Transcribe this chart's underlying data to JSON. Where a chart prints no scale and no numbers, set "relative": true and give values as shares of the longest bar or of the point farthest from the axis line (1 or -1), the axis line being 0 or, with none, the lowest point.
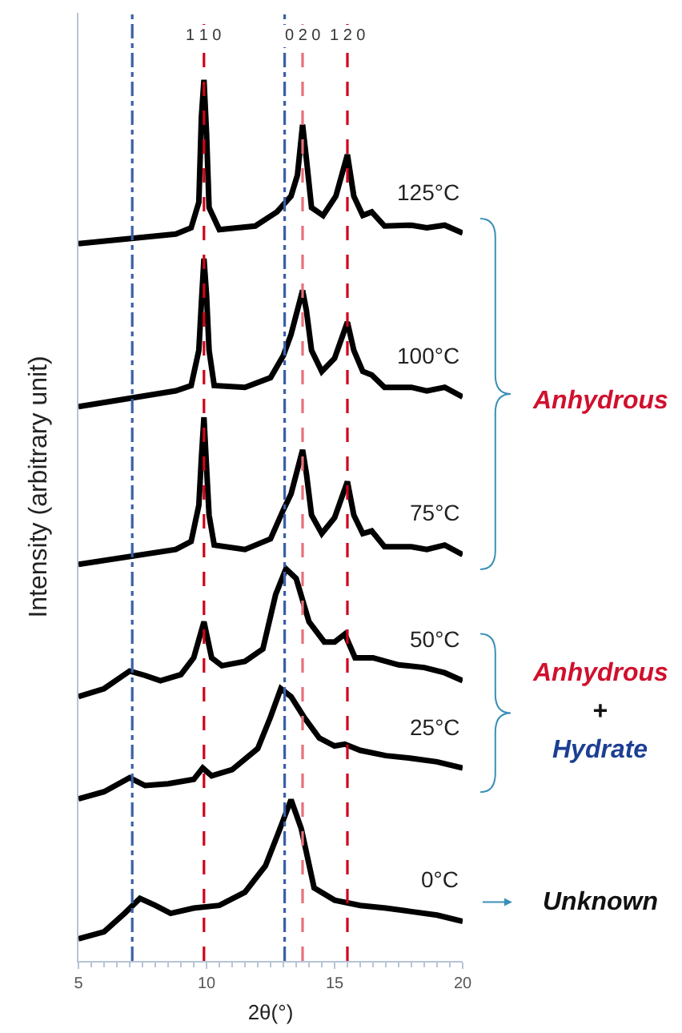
{
  "chart_data": {
    "type": "line",
    "relative": true,
    "xlabel": "2θ(°)",
    "ylabel": "Intensity (arbitrary unit)",
    "xlim": [
      5,
      20
    ],
    "xticks": [
      5,
      10,
      15,
      20
    ],
    "tick_labels": "x",
    "series": [
      {
        "name": "125°C",
        "color": "#000000",
        "x": [
          5,
          8.8,
          9.4,
          9.7,
          9.8,
          9.9,
          10.0,
          10.1,
          10.5,
          11.9,
          12.75,
          13.3,
          13.55,
          13.75,
          13.9,
          14.1,
          14.55,
          15.05,
          15.5,
          15.75,
          16.1,
          16.45,
          16.95,
          18.0,
          18.6,
          19.3,
          20
        ],
        "values": [
          0.814,
          0.825,
          0.832,
          0.861,
          0.958,
          1.0,
          0.94,
          0.855,
          0.83,
          0.834,
          0.85,
          0.868,
          0.892,
          0.949,
          0.91,
          0.855,
          0.846,
          0.868,
          0.915,
          0.868,
          0.846,
          0.85,
          0.834,
          0.835,
          0.832,
          0.835,
          0.826
        ]
      },
      {
        "name": "100°C",
        "color": "#000000",
        "x": [
          5,
          8.8,
          9.4,
          9.7,
          9.8,
          9.9,
          10.0,
          10.1,
          10.3,
          11.5,
          12.5,
          13.0,
          13.3,
          13.75,
          13.9,
          14.1,
          14.5,
          15.0,
          15.5,
          15.75,
          16.1,
          16.45,
          16.95,
          18.0,
          18.6,
          19.3,
          20
        ],
        "values": [
          0.629,
          0.647,
          0.653,
          0.693,
          0.747,
          0.797,
          0.756,
          0.693,
          0.653,
          0.651,
          0.662,
          0.687,
          0.711,
          0.761,
          0.738,
          0.693,
          0.669,
          0.684,
          0.725,
          0.693,
          0.669,
          0.665,
          0.651,
          0.651,
          0.647,
          0.651,
          0.64
        ]
      },
      {
        "name": "75°C",
        "color": "#000000",
        "x": [
          5,
          8.8,
          9.4,
          9.7,
          9.8,
          9.9,
          10.0,
          10.1,
          10.3,
          11.5,
          12.5,
          13.0,
          13.3,
          13.75,
          13.9,
          14.1,
          14.5,
          15.0,
          15.5,
          15.75,
          16.1,
          16.45,
          16.95,
          18.0,
          18.6,
          19.3,
          20
        ],
        "values": [
          0.45,
          0.467,
          0.476,
          0.517,
          0.571,
          0.617,
          0.561,
          0.506,
          0.472,
          0.467,
          0.479,
          0.512,
          0.53,
          0.58,
          0.553,
          0.506,
          0.485,
          0.503,
          0.544,
          0.506,
          0.485,
          0.488,
          0.47,
          0.47,
          0.467,
          0.472,
          0.461
        ]
      },
      {
        "name": "50°C",
        "color": "#000000",
        "x": [
          5,
          6,
          7,
          7.6,
          8.2,
          9.0,
          9.5,
          9.9,
          10.2,
          10.6,
          11.5,
          12.2,
          12.7,
          13.1,
          13.5,
          14.0,
          14.6,
          15.0,
          15.4,
          15.8,
          16.5,
          17.5,
          18.5,
          19.3,
          20
        ],
        "values": [
          0.3,
          0.309,
          0.329,
          0.324,
          0.318,
          0.325,
          0.344,
          0.385,
          0.344,
          0.335,
          0.34,
          0.354,
          0.416,
          0.445,
          0.434,
          0.385,
          0.362,
          0.362,
          0.371,
          0.344,
          0.344,
          0.336,
          0.333,
          0.327,
          0.318
        ]
      },
      {
        "name": "25°C",
        "color": "#000000",
        "x": [
          5,
          6,
          7,
          7.6,
          8.5,
          9.5,
          9.85,
          10.2,
          11.0,
          12.0,
          12.5,
          12.9,
          13.3,
          13.8,
          14.4,
          15.0,
          15.4,
          16,
          17,
          18,
          19,
          20
        ],
        "values": [
          0.184,
          0.192,
          0.208,
          0.199,
          0.201,
          0.206,
          0.219,
          0.21,
          0.217,
          0.241,
          0.277,
          0.309,
          0.3,
          0.277,
          0.253,
          0.244,
          0.246,
          0.239,
          0.233,
          0.23,
          0.226,
          0.219
        ]
      },
      {
        "name": "0°C",
        "color": "#000000",
        "x": [
          5,
          6,
          6.8,
          7.4,
          8.0,
          8.6,
          9.5,
          10.5,
          11.5,
          12.3,
          12.8,
          13.3,
          13.7,
          14.2,
          15,
          16,
          17,
          18,
          19,
          20
        ],
        "values": [
          0.025,
          0.033,
          0.054,
          0.071,
          0.063,
          0.054,
          0.06,
          0.063,
          0.078,
          0.108,
          0.145,
          0.183,
          0.15,
          0.083,
          0.069,
          0.063,
          0.06,
          0.056,
          0.052,
          0.045
        ]
      }
    ],
    "ref_lines": [
      {
        "axis": "x",
        "value": 9.9,
        "color": "#d0021b",
        "line_style": "dashed"
      },
      {
        "axis": "x",
        "value": 13.75,
        "color": "#e8707a",
        "line_style": "dashed"
      },
      {
        "axis": "x",
        "value": 15.5,
        "color": "#d0021b",
        "line_style": "dashed"
      },
      {
        "axis": "x",
        "value": 7.1,
        "color": "#3a5fa8",
        "line_style": "dashdot"
      },
      {
        "axis": "x",
        "value": 13.05,
        "color": "#3a5fa8",
        "line_style": "dashdot"
      }
    ],
    "annotations": [
      "Anhydrous",
      "Anhydrous",
      "+",
      "Hydrate",
      "Unknown",
      {
        "text": "1 1 0",
        "x": 9.9
      },
      {
        "text": "0 2 0",
        "x": 13.75
      },
      {
        "text": "1 2 0",
        "x": 15.5
      }
    ]
  }
}
